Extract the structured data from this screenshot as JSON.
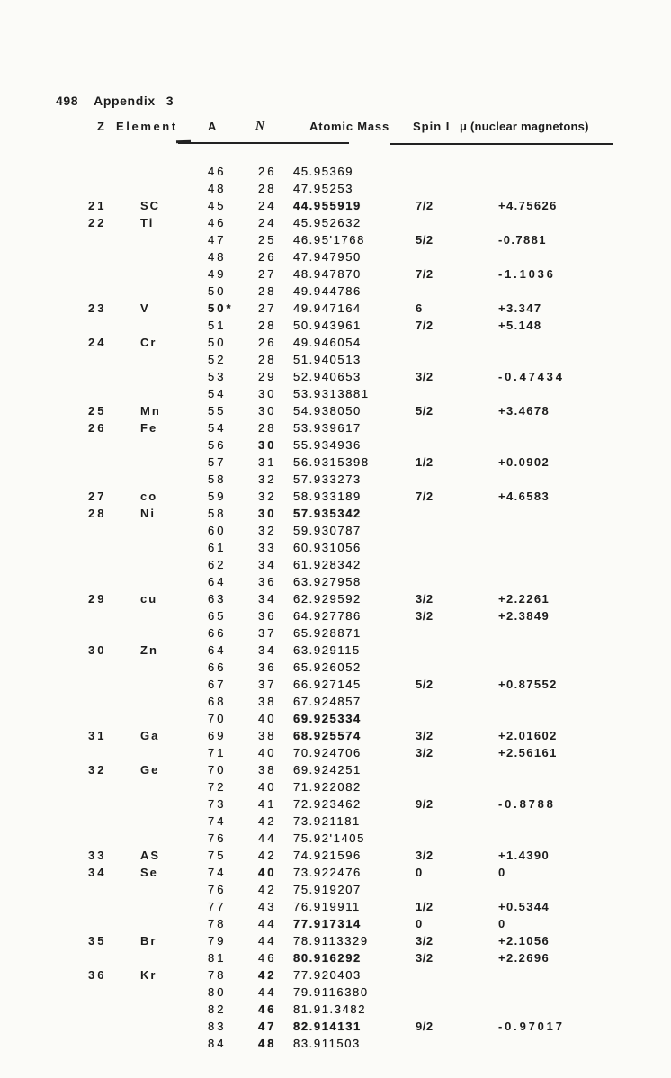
{
  "header": {
    "page_number": "498",
    "title": "Appendix",
    "section_number": "3"
  },
  "colors": {
    "ink": "#1c1c1c",
    "paper": "#fbfbf8"
  },
  "table": {
    "header": {
      "z": "Z",
      "element": "Element",
      "a": "A",
      "n": "N",
      "mass": "Atomic Mass",
      "spin": "Spin I",
      "mu": "μ (nuclear magnetons)"
    },
    "rows": [
      {
        "a": "46",
        "n": "26",
        "mass": "45.95369"
      },
      {
        "a": "48",
        "n": "28",
        "mass": "47.95253"
      },
      {
        "z": "21",
        "element": "SC",
        "a": "45",
        "n": "24",
        "mass": "44.955919",
        "spin": "7/2",
        "mu": "+4.75626",
        "bold_mass": true
      },
      {
        "z": "22",
        "element": "Ti",
        "a": "46",
        "n": "24",
        "mass": "45.952632"
      },
      {
        "a": "47",
        "n": "25",
        "mass": "46.95'1768",
        "spin": "5/2",
        "mu": "-0.7881"
      },
      {
        "a": "48",
        "n": "26",
        "mass": "47.947950"
      },
      {
        "a": "49",
        "n": "27",
        "mass": "48.947870",
        "spin": "7/2",
        "mu": "-1.1036",
        "wide_mu": true
      },
      {
        "a": "50",
        "n": "28",
        "mass": "49.944786"
      },
      {
        "z": "23",
        "element": "V",
        "a": "50*",
        "n": "27",
        "mass": "49.947164",
        "spin": "6",
        "mu": "+3.347",
        "bold_a": true
      },
      {
        "a": "51",
        "n": "28",
        "mass": "50.943961",
        "spin": "7/2",
        "mu": "+5.148"
      },
      {
        "z": "24",
        "element": "Cr",
        "a": "50",
        "n": "26",
        "mass": "49.946054"
      },
      {
        "a": "52",
        "n": "28",
        "mass": "51.940513"
      },
      {
        "a": "53",
        "n": "29",
        "mass": "52.940653",
        "spin": "3/2",
        "mu": "-0.47434",
        "wide_mu": true
      },
      {
        "a": "54",
        "n": "30",
        "mass": "53.9313881"
      },
      {
        "z": "25",
        "element": "Mn",
        "a": "55",
        "n": "30",
        "mass": "54.938050",
        "spin": "5/2",
        "mu": "+3.4678"
      },
      {
        "z": "26",
        "element": "Fe",
        "a": "54",
        "n": "28",
        "mass": "53.939617"
      },
      {
        "a": "56",
        "n": "30",
        "mass": "55.934936",
        "bold_n": true
      },
      {
        "a": "57",
        "n": "31",
        "mass": "56.9315398",
        "spin": "1/2",
        "mu": "+0.0902"
      },
      {
        "a": "58",
        "n": "32",
        "mass": "57.933273"
      },
      {
        "z": "27",
        "element": "co",
        "a": "59",
        "n": "32",
        "mass": "58.933189",
        "spin": "7/2",
        "mu": "+4.6583"
      },
      {
        "z": "28",
        "element": "Ni",
        "a": "58",
        "n": "30",
        "mass": "57.935342",
        "bold_mass": true,
        "bold_n": true
      },
      {
        "a": "60",
        "n": "32",
        "mass": "59.930787"
      },
      {
        "a": "61",
        "n": "33",
        "mass": "60.931056"
      },
      {
        "a": "62",
        "n": "34",
        "mass": "61.928342"
      },
      {
        "a": "64",
        "n": "36",
        "mass": "63.927958"
      },
      {
        "z": "29",
        "element": "cu",
        "a": "63",
        "n": "34",
        "mass": "62.929592",
        "spin": "3/2",
        "mu": "+2.2261"
      },
      {
        "a": "65",
        "n": "36",
        "mass": "64.927786",
        "spin": "3/2",
        "mu": "+2.3849"
      },
      {
        "a": "66",
        "n": "37",
        "mass": "65.928871"
      },
      {
        "z": "30",
        "element": "Zn",
        "a": "64",
        "n": "34",
        "mass": "63.929115"
      },
      {
        "a": "66",
        "n": "36",
        "mass": "65.926052"
      },
      {
        "a": "67",
        "n": "37",
        "mass": "66.927145",
        "spin": "5/2",
        "mu": "+0.87552"
      },
      {
        "a": "68",
        "n": "38",
        "mass": "67.924857"
      },
      {
        "a": "70",
        "n": "40",
        "mass": "69.925334",
        "bold_mass": true
      },
      {
        "z": "31",
        "element": "Ga",
        "a": "69",
        "n": "38",
        "mass": "68.925574",
        "spin": "3/2",
        "mu": "+2.01602",
        "bold_mass": true
      },
      {
        "a": "71",
        "n": "40",
        "mass": "70.924706",
        "spin": "3/2",
        "mu": "+2.56161"
      },
      {
        "z": "32",
        "element": "Ge",
        "a": "70",
        "n": "38",
        "mass": "69.924251"
      },
      {
        "a": "72",
        "n": "40",
        "mass": "71.922082"
      },
      {
        "a": "73",
        "n": "41",
        "mass": "72.923462",
        "spin": "9/2",
        "mu": "-0.8788",
        "wide_mu": true
      },
      {
        "a": "74",
        "n": "42",
        "mass": "73.921181"
      },
      {
        "a": "76",
        "n": "44",
        "mass": "75.92'1405"
      },
      {
        "z": "33",
        "element": "AS",
        "a": "75",
        "n": "42",
        "mass": "74.921596",
        "spin": "3/2",
        "mu": "+1.4390"
      },
      {
        "z": "34",
        "element": "Se",
        "a": "74",
        "n": "40",
        "mass": "73.922476",
        "spin": "0",
        "mu": "0",
        "bold_n": true
      },
      {
        "a": "76",
        "n": "42",
        "mass": "75.919207"
      },
      {
        "a": "77",
        "n": "43",
        "mass": "76.919911",
        "spin": "1/2",
        "mu": "+0.5344"
      },
      {
        "a": "78",
        "n": "44",
        "mass": "77.917314",
        "spin": "0",
        "mu": "0",
        "bold_mass": true
      },
      {
        "z": "35",
        "element": "Br",
        "a": "79",
        "n": "44",
        "mass": "78.9113329",
        "spin": "3/2",
        "mu": "+2.1056"
      },
      {
        "a": "81",
        "n": "46",
        "mass": "80.916292",
        "spin": "3/2",
        "mu": "+2.2696",
        "bold_mass": true
      },
      {
        "z": "36",
        "element": "Kr",
        "a": "78",
        "n": "42",
        "mass": "77.920403",
        "bold_n": true
      },
      {
        "a": "80",
        "n": "44",
        "mass": "79.9116380"
      },
      {
        "a": "82",
        "n": "46",
        "mass": "81.91.3482",
        "bold_n": true
      },
      {
        "a": "83",
        "n": "47",
        "mass": "82.914131",
        "spin": "9/2",
        "mu": "-0.97017",
        "bold_mass": true,
        "bold_n": true,
        "wide_mu": true
      },
      {
        "a": "84",
        "n": "48",
        "mass": "83.911503",
        "bold_n": true
      }
    ]
  }
}
